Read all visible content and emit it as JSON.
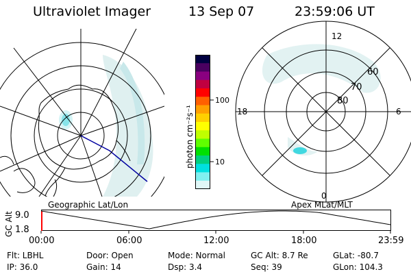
{
  "header": {
    "instrument": "Ultraviolet Imager",
    "date": "13 Sep 07",
    "time": "23:59:06 UT"
  },
  "left_panel": {
    "label": "Geographic Lat/Lon"
  },
  "right_panel": {
    "label": "Apex MLat/MLT",
    "mlt_labels": [
      "12",
      "18",
      "6",
      "0"
    ],
    "lat_labels": [
      "60",
      "70",
      "80"
    ]
  },
  "colorbar": {
    "unit_label": "photon cm⁻²s⁻¹",
    "ticks": [
      "100",
      "10"
    ],
    "colors": [
      "#000040",
      "#4a0060",
      "#8a0080",
      "#c00040",
      "#ff0000",
      "#ff6000",
      "#ffa000",
      "#ffd000",
      "#ffff00",
      "#c0ff00",
      "#60ff00",
      "#00e000",
      "#00d080",
      "#00e0e0",
      "#80f0f0",
      "#e0f8f8"
    ]
  },
  "altitude_plot": {
    "ylabel": "GC Alt",
    "yticks": [
      "9.0",
      "1.8"
    ],
    "xticks": [
      "00:00",
      "06:00",
      "12:00",
      "18:00",
      "23:59"
    ],
    "line_color": "#000000",
    "marker_color": "#ff0000"
  },
  "info": {
    "filter": "Flt: LBHL",
    "ip": "IP: 36.0",
    "door": "Door: Open",
    "gain": "Gain: 14",
    "mode": "Mode: Normal",
    "dsp": "Dsp:     3.4",
    "gc_alt": "GC Alt: 8.7 Re",
    "seq": "Seq: 39",
    "glat": "GLat: -80.7",
    "glon": "GLon: 104.3"
  }
}
